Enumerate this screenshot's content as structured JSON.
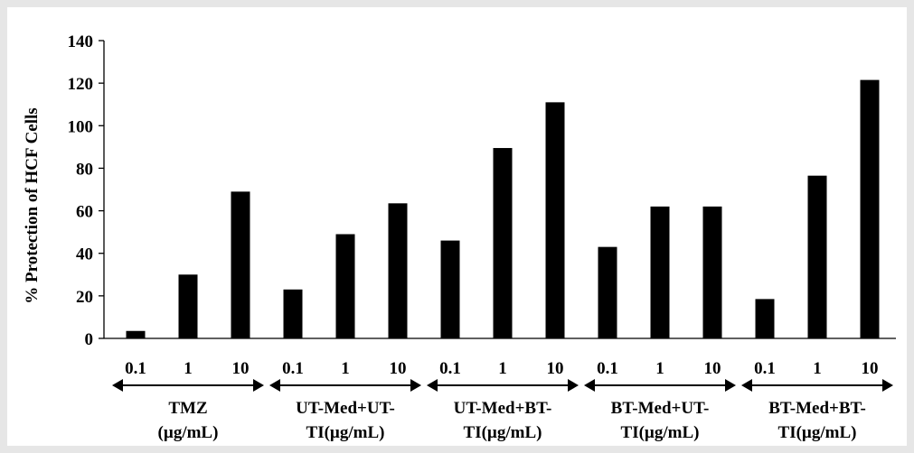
{
  "chart_data": {
    "type": "bar",
    "ylabel": "% Protection of HCF Cells",
    "ylim": [
      0,
      140
    ],
    "yticks": [
      0,
      20,
      40,
      60,
      80,
      100,
      120,
      140
    ],
    "grid": false,
    "bar_color": "#000000",
    "groups": [
      {
        "label_lines": [
          "TMZ",
          "(µg/mL)"
        ],
        "categories": [
          "0.1",
          "1",
          "10"
        ],
        "values": [
          3.5,
          30,
          69
        ]
      },
      {
        "label_lines": [
          "UT-Med+UT-",
          "TI(µg/mL)"
        ],
        "categories": [
          "0.1",
          "1",
          "10"
        ],
        "values": [
          23,
          49,
          63.5
        ]
      },
      {
        "label_lines": [
          "UT-Med+BT-",
          "TI(µg/mL)"
        ],
        "categories": [
          "0.1",
          "1",
          "10"
        ],
        "values": [
          46,
          89.5,
          111
        ]
      },
      {
        "label_lines": [
          "BT-Med+UT-",
          "TI(µg/mL)"
        ],
        "categories": [
          "0.1",
          "1",
          "10"
        ],
        "values": [
          43,
          62,
          62
        ]
      },
      {
        "label_lines": [
          "BT-Med+BT-",
          "TI(µg/mL)"
        ],
        "categories": [
          "0.1",
          "1",
          "10"
        ],
        "values": [
          18.5,
          76.5,
          121.5
        ]
      }
    ]
  }
}
